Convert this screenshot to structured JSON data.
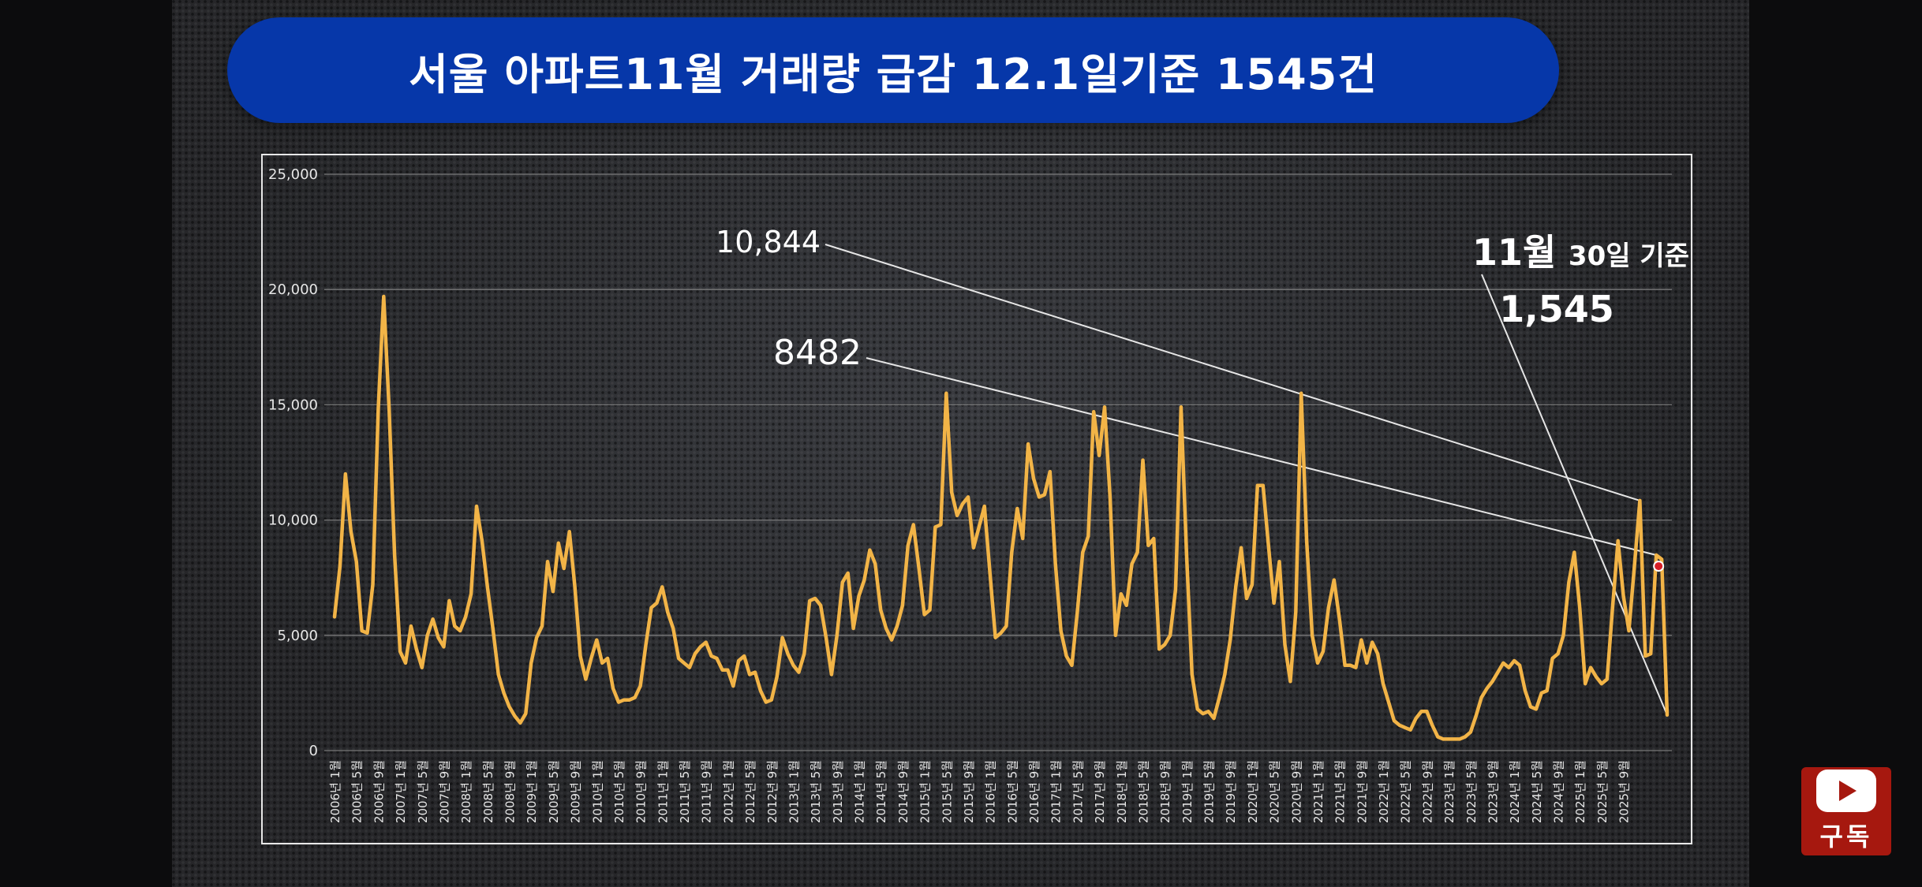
{
  "title": "서울 아파트11월 거래량   급감 12.1일기준 1545건",
  "subscribe_label": "구독",
  "colors": {
    "banner": "#0637a9",
    "line": "#f2b447",
    "grid": "#8a8a8a",
    "annotation_line": "#e6e6e6",
    "text": "#ffffff",
    "marker": "#d71f26"
  },
  "annotations": {
    "peak_label": "10,844",
    "second_label": "8482",
    "latest_prefix": "11월",
    "latest_suffix": "30일 기준",
    "latest_value": "1,545"
  },
  "chart_data": {
    "type": "line",
    "title": "",
    "xlabel": "",
    "ylabel": "",
    "ylim": [
      0,
      25000
    ],
    "yticks": [
      "0",
      "5,000",
      "10,000",
      "15,000",
      "20,000",
      "25,000"
    ],
    "grid": true,
    "x_tick_labels": [
      "2006년 1월",
      "2006년 5월",
      "2006년 9월",
      "2007년 1월",
      "2007년 5월",
      "2007년 9월",
      "2008년 1월",
      "2008년 5월",
      "2008년 9월",
      "2009년 1월",
      "2009년 5월",
      "2009년 9월",
      "2010년 1월",
      "2010년 5월",
      "2010년 9월",
      "2011년 1월",
      "2011년 5월",
      "2011년 9월",
      "2012년 1월",
      "2012년 5월",
      "2012년 9월",
      "2013년 1월",
      "2013년 5월",
      "2013년 9월",
      "2014년 1월",
      "2014년 5월",
      "2014년 9월",
      "2015년 1월",
      "2015년 5월",
      "2015년 9월",
      "2016년 1월",
      "2016년 5월",
      "2016년 9월",
      "2017년 1월",
      "2017년 5월",
      "2017년 9월",
      "2018년 1월",
      "2018년 5월",
      "2018년 9월",
      "2019년 1월",
      "2019년 5월",
      "2019년 9월",
      "2020년 1월",
      "2020년 5월",
      "2020년 9월",
      "2021년 1월",
      "2021년 5월",
      "2021년 9월",
      "2022년 1월",
      "2022년 5월",
      "2022년 9월",
      "2023년 1월",
      "2023년 5월",
      "2023년 9월",
      "2024년 1월",
      "2024년 5월",
      "2024년 9월",
      "2025년 1월",
      "2025년 5월",
      "2025년 9월"
    ],
    "series": [
      {
        "values": [
          5800,
          8000,
          12000,
          9500,
          8200,
          5200,
          5100,
          7200,
          14800,
          19700,
          14800,
          8500,
          4300,
          3800,
          5400,
          4400,
          3600,
          5000,
          5700,
          4900,
          4500,
          6500,
          5400,
          5200,
          5800,
          6800,
          10600,
          9100,
          7100,
          5300,
          3300,
          2500,
          1900,
          1500,
          1200,
          1600,
          3800,
          4900,
          5400,
          8200,
          6900,
          9000,
          7900,
          9500,
          7100,
          4100,
          3100,
          4000,
          4800,
          3800,
          4000,
          2700,
          2100,
          2200,
          2200,
          2300,
          2800,
          4600,
          6200,
          6400,
          7100,
          6000,
          5300,
          4000,
          3800,
          3600,
          4200,
          4500,
          4700,
          4100,
          4000,
          3500,
          3500,
          2800,
          3900,
          4100,
          3300,
          3400,
          2600,
          2100,
          2200,
          3200,
          4900,
          4200,
          3700,
          3400,
          4200,
          6500,
          6600,
          6300,
          4900,
          3300,
          5000,
          7300,
          7700,
          5300,
          6700,
          7400,
          8700,
          8100,
          6100,
          5300,
          4800,
          5400,
          6300,
          8900,
          9800,
          7900,
          5900,
          6100,
          9700,
          9800,
          15500,
          11200,
          10200,
          10700,
          11000,
          8800,
          9700,
          10600,
          7700,
          4900,
          5100,
          5400,
          8600,
          10500,
          9200,
          13300,
          11800,
          11000,
          11100,
          12100,
          8100,
          5200,
          4100,
          3700,
          6000,
          8600,
          9300,
          14700,
          12800,
          14900,
          11000,
          5000,
          6800,
          6300,
          8100,
          8600,
          12600,
          8900,
          9200,
          4400,
          4600,
          5000,
          7000,
          14900,
          8500,
          3300,
          1800,
          1600,
          1700,
          1400,
          2300,
          3300,
          4800,
          7100,
          8800,
          6600,
          7200,
          11500,
          11500,
          8900,
          6400,
          8200,
          4600,
          3000,
          6000,
          15500,
          9100,
          5000,
          3800,
          4300,
          6200,
          7400,
          5700,
          3700,
          3700,
          3600,
          4800,
          3800,
          4700,
          4200,
          2900,
          2100,
          1300,
          1100,
          1000,
          900,
          1400,
          1700,
          1700,
          1100,
          600,
          500,
          500,
          500,
          500,
          600,
          800,
          1500,
          2300,
          2700,
          3000,
          3400,
          3800,
          3600,
          3900,
          3700,
          2600,
          1900,
          1800,
          2500,
          2600,
          4000,
          4200,
          5000,
          7300,
          8600,
          6200,
          2900,
          3600,
          3200,
          2900,
          3100,
          6200,
          9100,
          6700,
          5200,
          8000,
          10844,
          4100,
          4200,
          8482,
          8300,
          1545
        ]
      }
    ]
  }
}
